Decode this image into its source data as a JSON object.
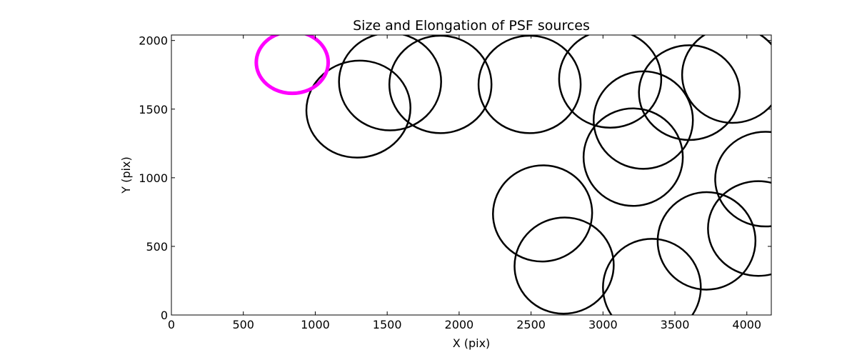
{
  "chart_data": {
    "type": "scatter",
    "marker": "ellipse",
    "title": "Size and Elongation of PSF sources",
    "xlabel": "X (pix)",
    "ylabel": "Y (pix)",
    "xlim": [
      0,
      4170
    ],
    "ylim": [
      0,
      2040
    ],
    "xticks": [
      0,
      500,
      1000,
      1500,
      2000,
      2500,
      3000,
      3500,
      4000
    ],
    "yticks": [
      0,
      500,
      1000,
      1500,
      2000
    ],
    "xtick_labels": [
      "0",
      "500",
      "1000",
      "1500",
      "2000",
      "2500",
      "3000",
      "3500",
      "4000"
    ],
    "ytick_labels": [
      "0",
      "500",
      "1000",
      "1500",
      "2000"
    ],
    "grid": false,
    "colors": {
      "source": "#000000",
      "highlight": "#ff00ff"
    },
    "series": [
      {
        "role": "highlight",
        "points": [
          {
            "x": 840,
            "y": 1840,
            "w": 500,
            "h": 450,
            "angle": 0
          }
        ]
      },
      {
        "role": "source",
        "points": [
          {
            "x": 1300,
            "y": 1500,
            "w": 725,
            "h": 705,
            "angle": 10
          },
          {
            "x": 1520,
            "y": 1700,
            "w": 710,
            "h": 710,
            "angle": 0
          },
          {
            "x": 1870,
            "y": 1680,
            "w": 710,
            "h": 710,
            "angle": 0
          },
          {
            "x": 2490,
            "y": 1680,
            "w": 710,
            "h": 710,
            "angle": 0
          },
          {
            "x": 3050,
            "y": 1720,
            "w": 710,
            "h": 710,
            "angle": 0
          },
          {
            "x": 3280,
            "y": 1420,
            "w": 690,
            "h": 710,
            "angle": 0
          },
          {
            "x": 3210,
            "y": 1150,
            "w": 690,
            "h": 710,
            "angle": 0
          },
          {
            "x": 3600,
            "y": 1620,
            "w": 700,
            "h": 690,
            "angle": 0
          },
          {
            "x": 3900,
            "y": 1750,
            "w": 700,
            "h": 700,
            "angle": 0
          },
          {
            "x": 4130,
            "y": 990,
            "w": 700,
            "h": 690,
            "angle": 0
          },
          {
            "x": 4080,
            "y": 630,
            "w": 700,
            "h": 690,
            "angle": 0
          },
          {
            "x": 3720,
            "y": 540,
            "w": 680,
            "h": 710,
            "angle": 10
          },
          {
            "x": 3340,
            "y": 200,
            "w": 680,
            "h": 710,
            "angle": 0
          },
          {
            "x": 2580,
            "y": 740,
            "w": 690,
            "h": 700,
            "angle": 10
          },
          {
            "x": 2730,
            "y": 360,
            "w": 690,
            "h": 700,
            "angle": 10
          }
        ]
      }
    ]
  }
}
